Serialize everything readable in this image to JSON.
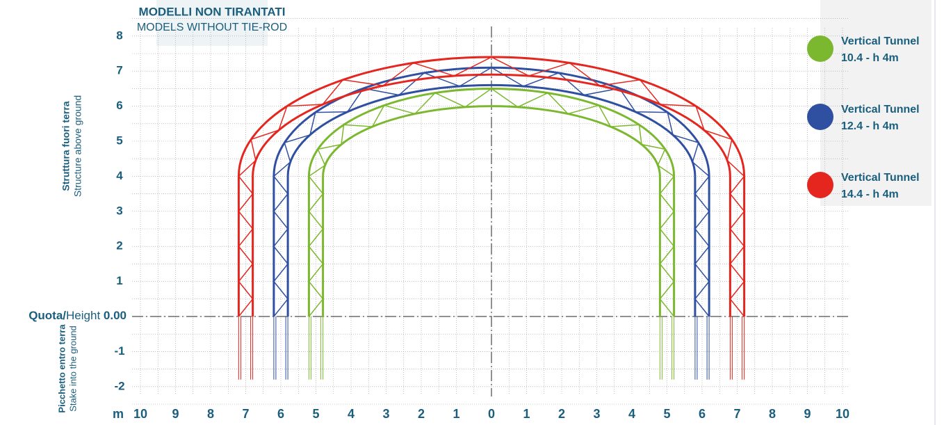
{
  "header": {
    "title": "MODELLI NON TIRANTATI",
    "subtitle": "MODELS WITHOUT TIE-ROD"
  },
  "y_axis": {
    "above_label_bold": "Struttura fuori terra",
    "above_label": "Structure above ground",
    "below_label_bold": "Picchetto entro terra",
    "below_label": "Stake into the ground",
    "ticks_above": [
      8,
      7,
      6,
      5,
      4,
      3,
      2,
      1
    ],
    "ticks_below": [
      -1,
      -2
    ]
  },
  "baseline": {
    "bold": "Quota/",
    "regular": "Height ",
    "value": "0.00"
  },
  "x_axis": {
    "unit": "m",
    "ticks": [
      10,
      9,
      8,
      7,
      6,
      5,
      4,
      3,
      2,
      1,
      0,
      1,
      2,
      3,
      4,
      5,
      6,
      7,
      8,
      9,
      10
    ]
  },
  "legend": [
    {
      "label_line1": "Vertical Tunnel",
      "label_line2": "10.4 - h 4m",
      "color": "#7cb82f"
    },
    {
      "label_line1": "Vertical Tunnel",
      "label_line2": "12.4 - h 4m",
      "color": "#2f4fa0"
    },
    {
      "label_line1": "Vertical Tunnel",
      "label_line2": "14.4 - h 4m",
      "color": "#e4261f"
    }
  ]
}
